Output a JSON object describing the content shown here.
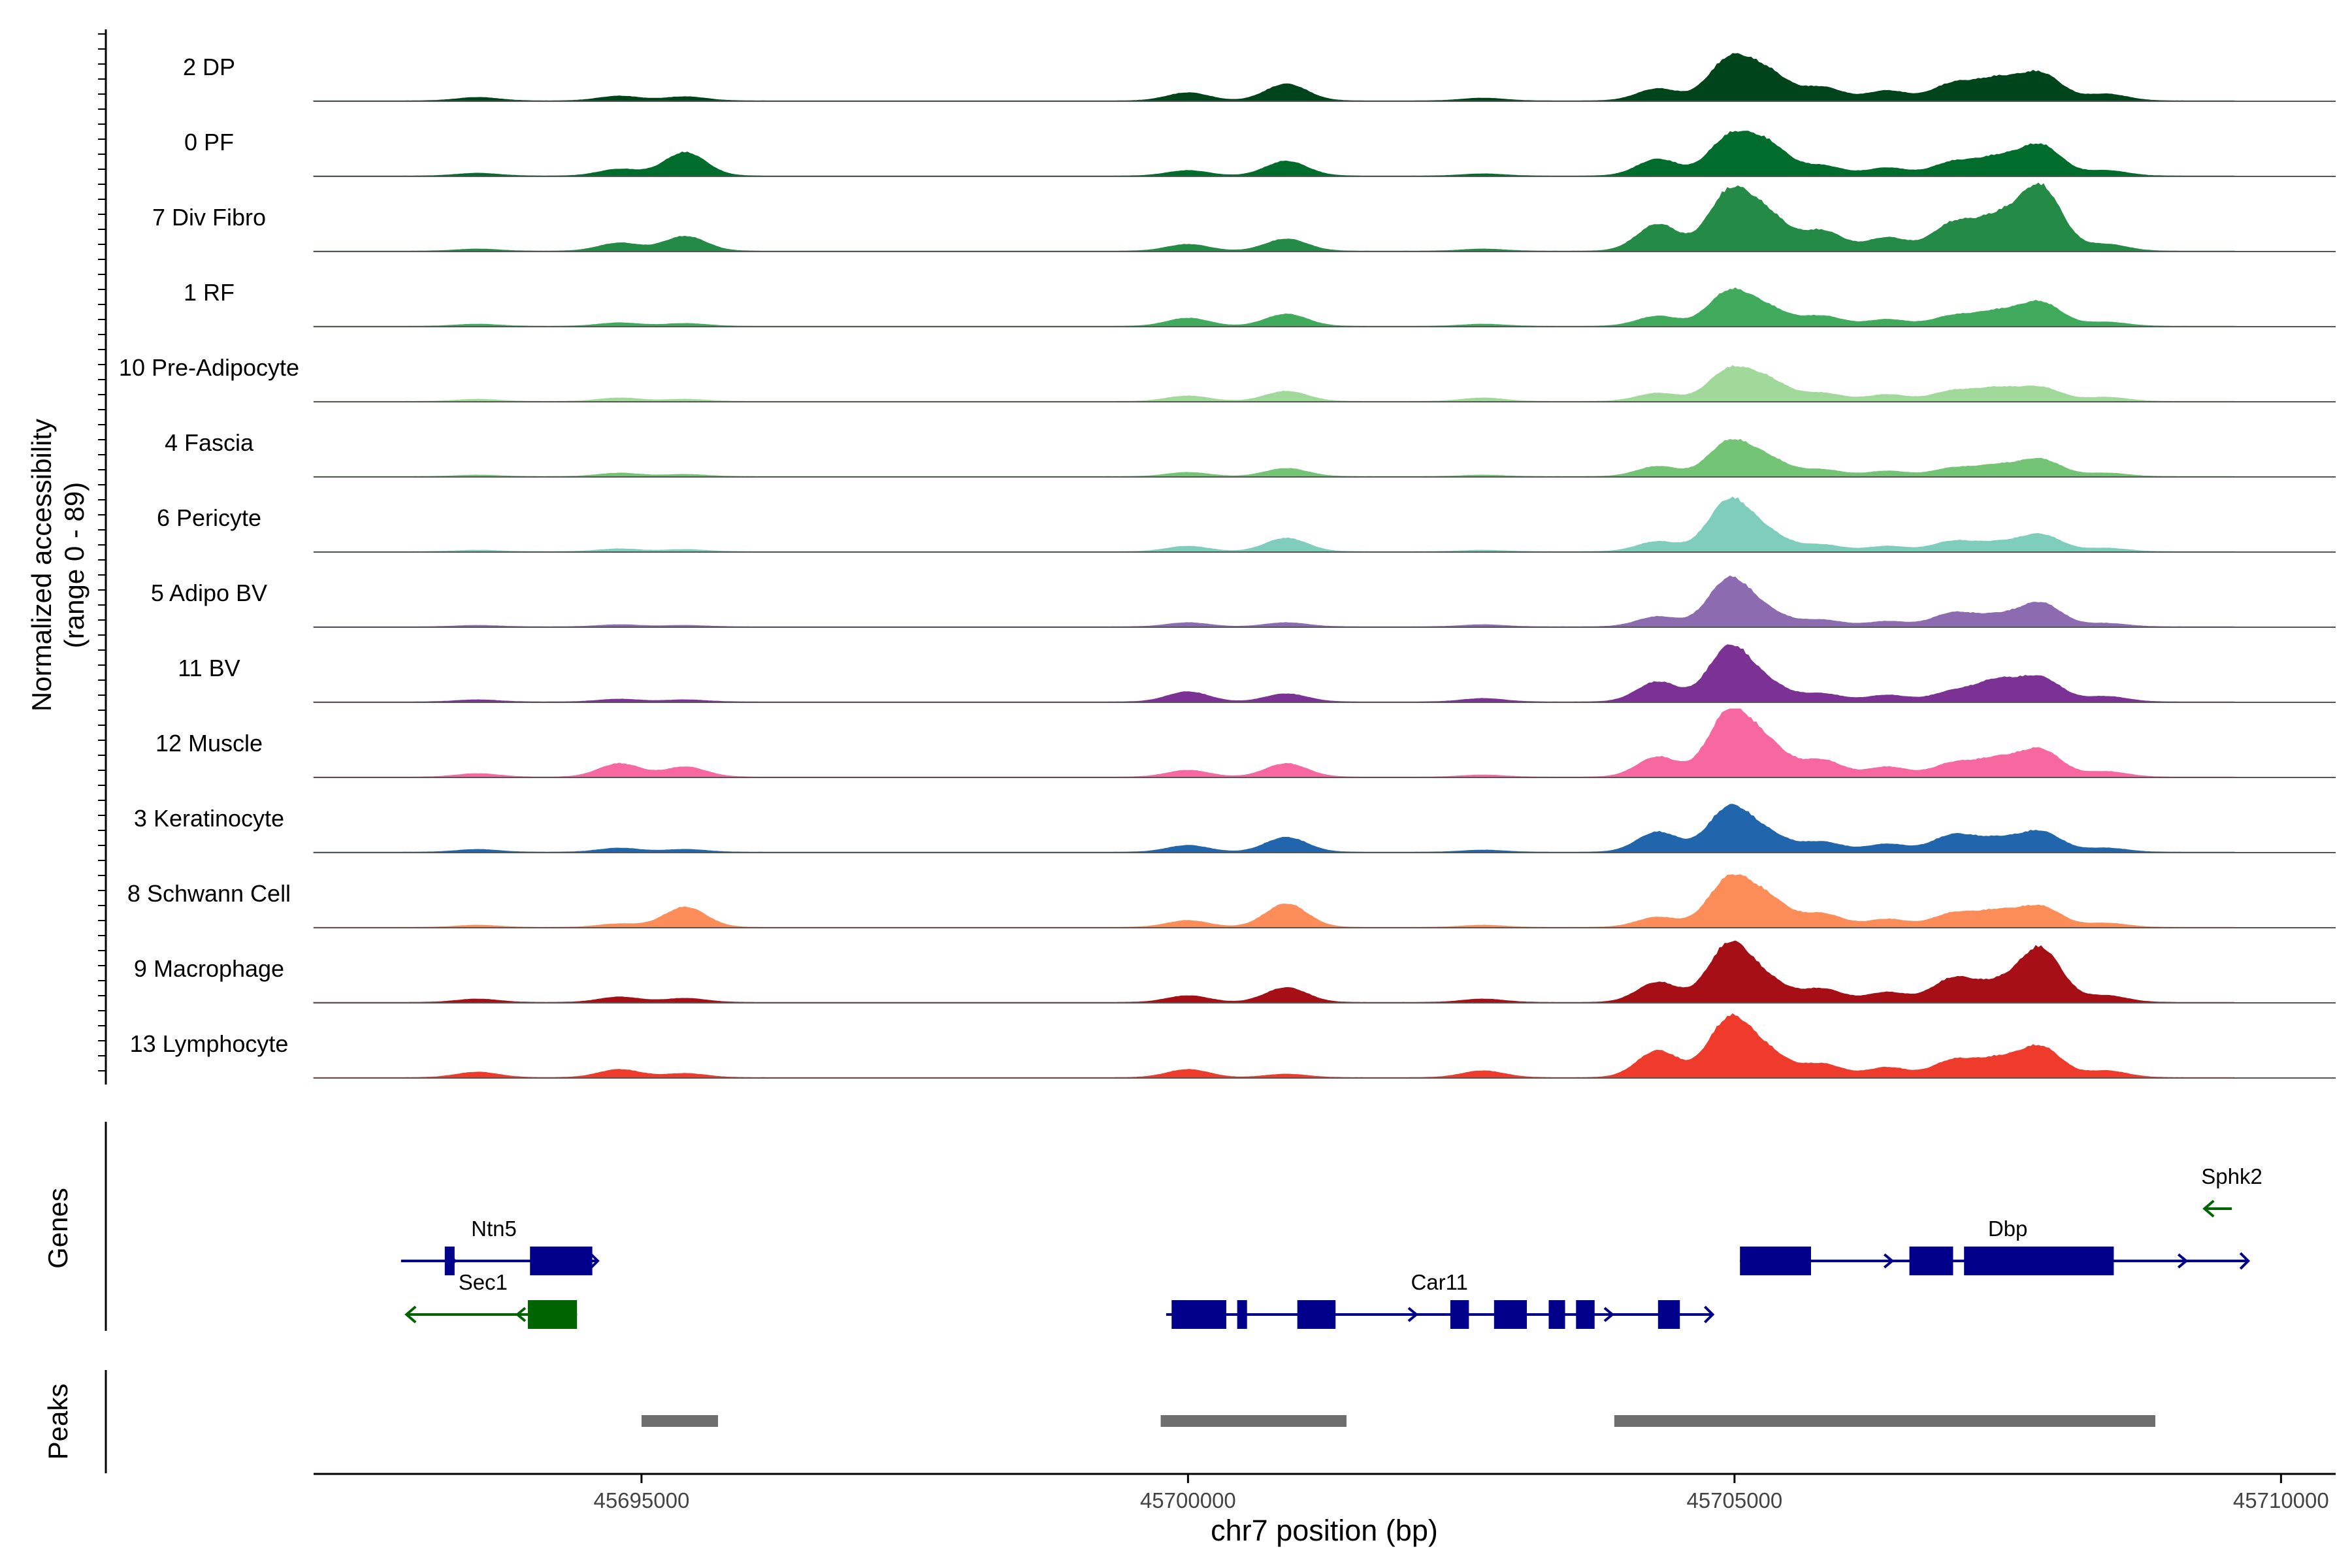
{
  "chart_data": {
    "type": "area",
    "y_label_line1": "Normalized accessibility",
    "y_label_line2": "(range 0 - 89)",
    "ylim": [
      0,
      89
    ],
    "xlabel": "chr7 position (bp)",
    "xlim": [
      45692000,
      45710500
    ],
    "x_ticks": [
      45695000,
      45700000,
      45705000,
      45710000
    ],
    "x_tick_labels": [
      "45695000",
      "45700000",
      "45705000",
      "45710000"
    ],
    "tracks": [
      {
        "label": "2 DP",
        "color": "#00441b"
      },
      {
        "label": "0 PF",
        "color": "#006d2c"
      },
      {
        "label": "7 Div Fibro",
        "color": "#238b45"
      },
      {
        "label": "1 RF",
        "color": "#41ab5d"
      },
      {
        "label": "10 Pre-Adipocyte",
        "color": "#a1d99b"
      },
      {
        "label": "4 Fascia",
        "color": "#74c476"
      },
      {
        "label": "6 Pericyte",
        "color": "#7fcdbb"
      },
      {
        "label": "5 Adipo BV",
        "color": "#8c6bb1"
      },
      {
        "label": "11 BV",
        "color": "#7b3294"
      },
      {
        "label": "12 Muscle",
        "color": "#f768a1"
      },
      {
        "label": "3 Keratinocyte",
        "color": "#2166ac"
      },
      {
        "label": "8 Schwann Cell",
        "color": "#fc8d59"
      },
      {
        "label": "9 Macrophage",
        "color": "#a50f15"
      },
      {
        "label": "13 Lymphocyte",
        "color": "#ef3b2c"
      }
    ],
    "peak_positions": [
      45693500,
      45694800,
      45695400,
      45700000,
      45700900,
      45702700,
      45704300,
      45704950,
      45705300,
      45705800,
      45706400,
      45707000,
      45707400,
      45707800,
      45708400
    ],
    "peak_heights": [
      [
        0.05,
        0.07,
        0.06,
        0.12,
        0.25,
        0.04,
        0.18,
        0.6,
        0.4,
        0.2,
        0.15,
        0.25,
        0.3,
        0.4,
        0.1
      ],
      [
        0.04,
        0.1,
        0.35,
        0.08,
        0.22,
        0.03,
        0.25,
        0.55,
        0.45,
        0.15,
        0.12,
        0.2,
        0.25,
        0.45,
        0.08
      ],
      [
        0.03,
        0.12,
        0.22,
        0.1,
        0.18,
        0.03,
        0.4,
        0.85,
        0.5,
        0.3,
        0.2,
        0.4,
        0.45,
        0.95,
        0.1
      ],
      [
        0.03,
        0.05,
        0.04,
        0.12,
        0.18,
        0.03,
        0.15,
        0.5,
        0.25,
        0.15,
        0.1,
        0.15,
        0.2,
        0.35,
        0.06
      ],
      [
        0.03,
        0.05,
        0.03,
        0.08,
        0.15,
        0.05,
        0.12,
        0.45,
        0.3,
        0.12,
        0.1,
        0.15,
        0.18,
        0.2,
        0.06
      ],
      [
        0.02,
        0.05,
        0.03,
        0.06,
        0.12,
        0.02,
        0.15,
        0.5,
        0.25,
        0.1,
        0.08,
        0.12,
        0.15,
        0.25,
        0.05
      ],
      [
        0.02,
        0.04,
        0.03,
        0.08,
        0.2,
        0.02,
        0.15,
        0.75,
        0.25,
        0.1,
        0.08,
        0.15,
        0.12,
        0.25,
        0.05
      ],
      [
        0.02,
        0.03,
        0.02,
        0.06,
        0.06,
        0.03,
        0.15,
        0.7,
        0.2,
        0.1,
        0.08,
        0.2,
        0.15,
        0.35,
        0.05
      ],
      [
        0.03,
        0.04,
        0.03,
        0.15,
        0.12,
        0.05,
        0.3,
        0.8,
        0.25,
        0.12,
        0.1,
        0.15,
        0.3,
        0.35,
        0.08
      ],
      [
        0.05,
        0.2,
        0.15,
        0.1,
        0.2,
        0.03,
        0.3,
        0.95,
        0.45,
        0.25,
        0.15,
        0.2,
        0.25,
        0.4,
        0.08
      ],
      [
        0.04,
        0.06,
        0.04,
        0.1,
        0.22,
        0.03,
        0.3,
        0.65,
        0.25,
        0.15,
        0.12,
        0.25,
        0.18,
        0.3,
        0.06
      ],
      [
        0.03,
        0.05,
        0.3,
        0.1,
        0.35,
        0.03,
        0.15,
        0.7,
        0.4,
        0.2,
        0.12,
        0.2,
        0.22,
        0.3,
        0.06
      ],
      [
        0.05,
        0.08,
        0.06,
        0.1,
        0.22,
        0.05,
        0.3,
        0.85,
        0.3,
        0.2,
        0.15,
        0.35,
        0.25,
        0.8,
        0.1
      ],
      [
        0.08,
        0.12,
        0.06,
        0.12,
        0.05,
        0.1,
        0.4,
        0.85,
        0.35,
        0.2,
        0.15,
        0.25,
        0.25,
        0.45,
        0.1
      ]
    ],
    "genes_label": "Genes",
    "genes": [
      {
        "name": "Ntn5",
        "strand": "+",
        "start": 45692800,
        "end": 45694600,
        "color": "#00008b",
        "row": 0,
        "label_x": 45693650,
        "exons": [
          [
            45693200,
            45693290
          ],
          [
            45693980,
            45694550
          ]
        ]
      },
      {
        "name": "Sec1",
        "strand": "-",
        "start": 45692850,
        "end": 45694410,
        "color": "#006400",
        "row": 1,
        "label_x": 45693550,
        "exons": [
          [
            45693960,
            45694410
          ]
        ]
      },
      {
        "name": "Car11",
        "strand": "+",
        "start": 45699800,
        "end": 45704800,
        "color": "#00008b",
        "row": 1,
        "label_x": 45702300,
        "exons": [
          [
            45699850,
            45700350
          ],
          [
            45700450,
            45700540
          ],
          [
            45701000,
            45701350
          ],
          [
            45702400,
            45702570
          ],
          [
            45702800,
            45703100
          ],
          [
            45703300,
            45703450
          ],
          [
            45703550,
            45703720
          ],
          [
            45704300,
            45704500
          ]
        ]
      },
      {
        "name": "Dbp",
        "strand": "+",
        "start": 45705050,
        "end": 45709700,
        "color": "#00008b",
        "row": 0,
        "label_x": 45707500,
        "exons": [
          [
            45705050,
            45705700
          ],
          [
            45706600,
            45707000
          ],
          [
            45707100,
            45708470
          ]
        ]
      },
      {
        "name": "Sphk2",
        "strand": "-",
        "start": 45709300,
        "end": 45709550,
        "color": "#006400",
        "row": -1,
        "label_x": 45709550,
        "exons": []
      }
    ],
    "peaks_label": "Peaks",
    "peak_regions": [
      [
        45695000,
        45695700
      ],
      [
        45699750,
        45701450
      ],
      [
        45703900,
        45708850
      ]
    ]
  }
}
